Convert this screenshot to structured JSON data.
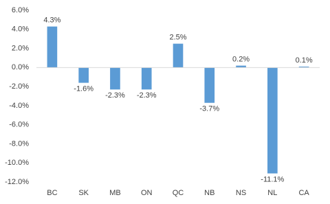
{
  "chart_data": {
    "type": "bar",
    "categories": [
      "BC",
      "SK",
      "MB",
      "ON",
      "QC",
      "NB",
      "NS",
      "NL",
      "CA"
    ],
    "values": [
      4.3,
      -1.6,
      -2.3,
      -2.3,
      2.5,
      -3.7,
      0.2,
      -11.1,
      0.1
    ],
    "value_labels": [
      "4.3%",
      "-1.6%",
      "-2.3%",
      "-2.3%",
      "2.5%",
      "-3.7%",
      "0.2%",
      "-11.1%",
      "0.1%"
    ],
    "color": "#5b9bd5",
    "ylim": [
      -12,
      6
    ],
    "yticks": [
      {
        "value": 6,
        "label": "6.0%"
      },
      {
        "value": 4,
        "label": "4.0%"
      },
      {
        "value": 2,
        "label": "2.0%"
      },
      {
        "value": 0,
        "label": "0.0%"
      },
      {
        "value": -2,
        "label": "-2.0%"
      },
      {
        "value": -4,
        "label": "-4.0%"
      },
      {
        "value": -6,
        "label": "-6.0%"
      },
      {
        "value": -8,
        "label": "-8.0%"
      },
      {
        "value": -10,
        "label": "-10.0%"
      },
      {
        "value": -12,
        "label": "-12.0%"
      }
    ],
    "grid": false
  }
}
